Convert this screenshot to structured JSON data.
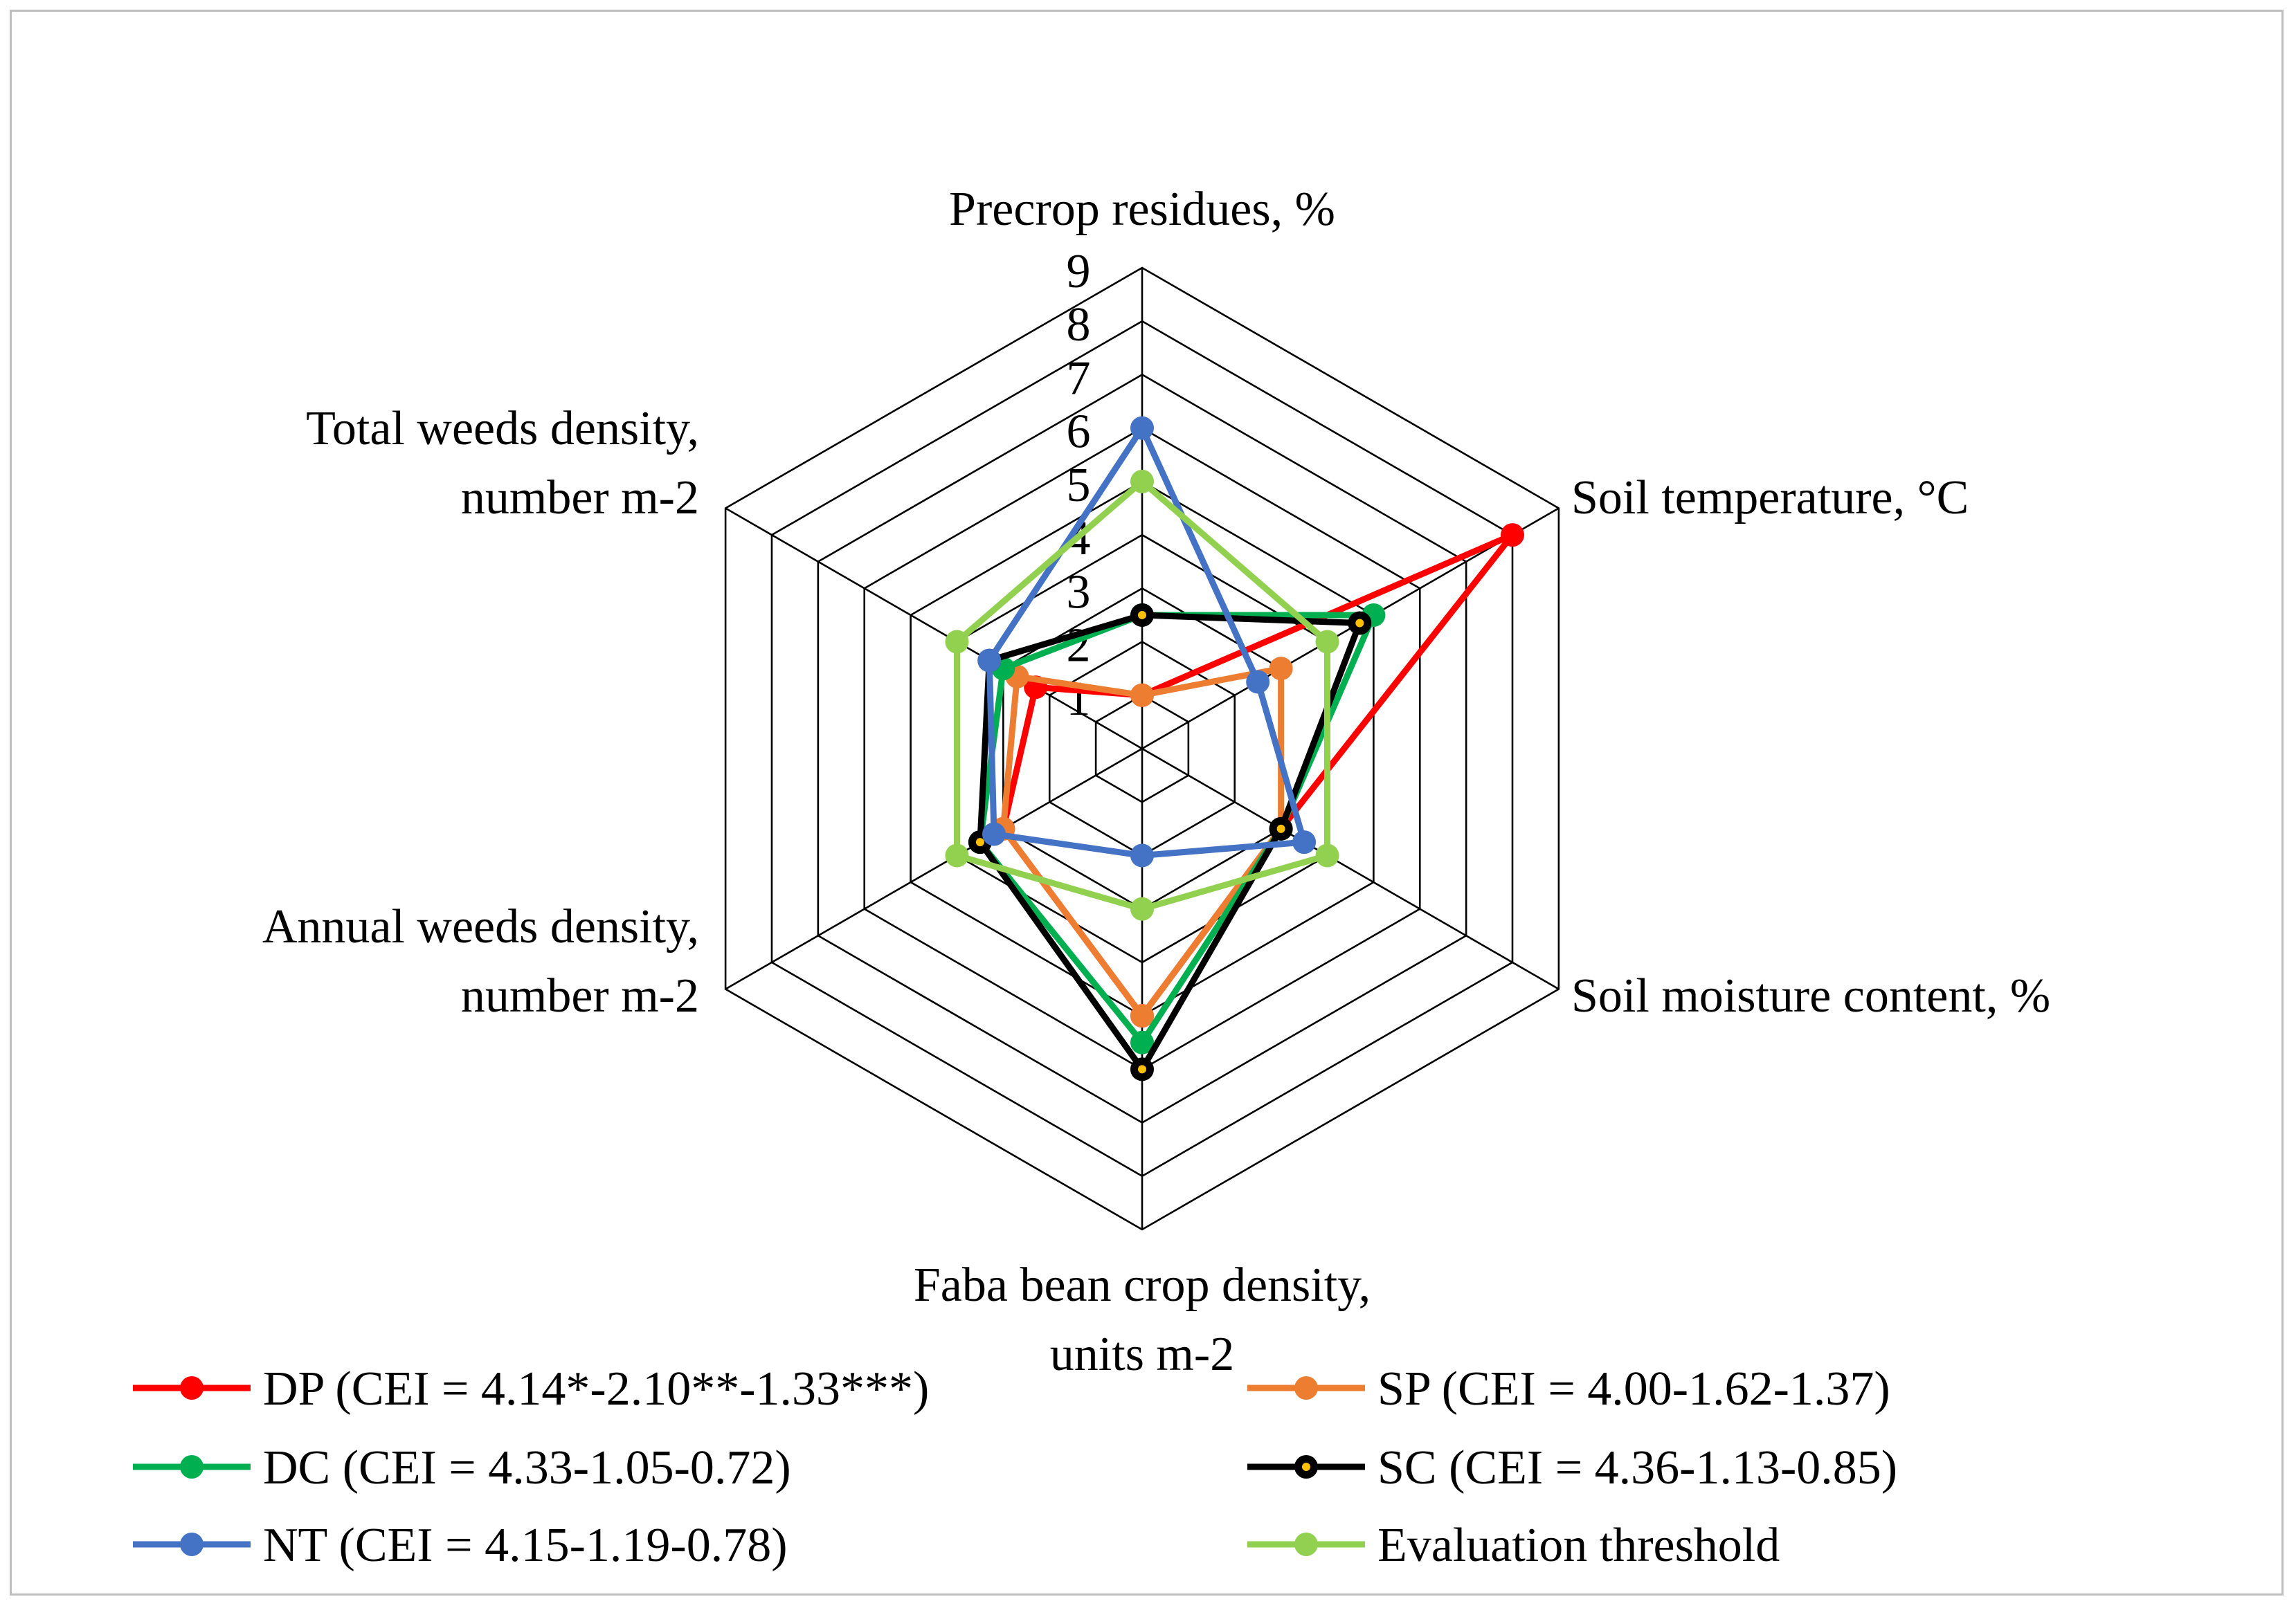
{
  "chart_data": {
    "type": "radar",
    "axes": [
      [
        "Precrop residues, %"
      ],
      [
        "Soil temperature, °C"
      ],
      [
        "Soil moisture content, %"
      ],
      [
        "Faba bean crop density,",
        "units m-2"
      ],
      [
        "Annual weeds density,",
        "number m-2"
      ],
      [
        "Total weeds density,",
        "number m-2"
      ]
    ],
    "ticks": [
      "1",
      "2",
      "3",
      "4",
      "5",
      "6",
      "7",
      "8",
      "9"
    ],
    "rlim": [
      0,
      9
    ],
    "legend_position": "bottom",
    "series": [
      {
        "name": "DP (CEI = 4.14*-2.10**-1.33***)",
        "color": "#ff0000",
        "values": [
          1,
          8,
          3,
          5,
          3,
          2.3
        ]
      },
      {
        "name": "SP (CEI = 4.00-1.62-1.37)",
        "color": "#ed7d31",
        "values": [
          1,
          3,
          3,
          5,
          3,
          2.7
        ]
      },
      {
        "name": "DC (CEI = 4.33-1.05-0.72)",
        "color": "#00b050",
        "values": [
          2.5,
          5,
          3,
          5.5,
          3.5,
          3
        ]
      },
      {
        "name": "SC (CEI = 4.36-1.13-0.85)",
        "color": "#000000",
        "values": [
          2.5,
          4.7,
          3,
          6,
          3.5,
          3.3
        ]
      },
      {
        "name": "NT (CEI =  4.15-1.19-0.78)",
        "color": "#4472c4",
        "values": [
          6,
          2.5,
          3.5,
          2,
          3.2,
          3.3
        ]
      },
      {
        "name": "Evaluation threshold",
        "color": "#92d050",
        "values": [
          5,
          4,
          4,
          3,
          4,
          4
        ]
      }
    ]
  }
}
